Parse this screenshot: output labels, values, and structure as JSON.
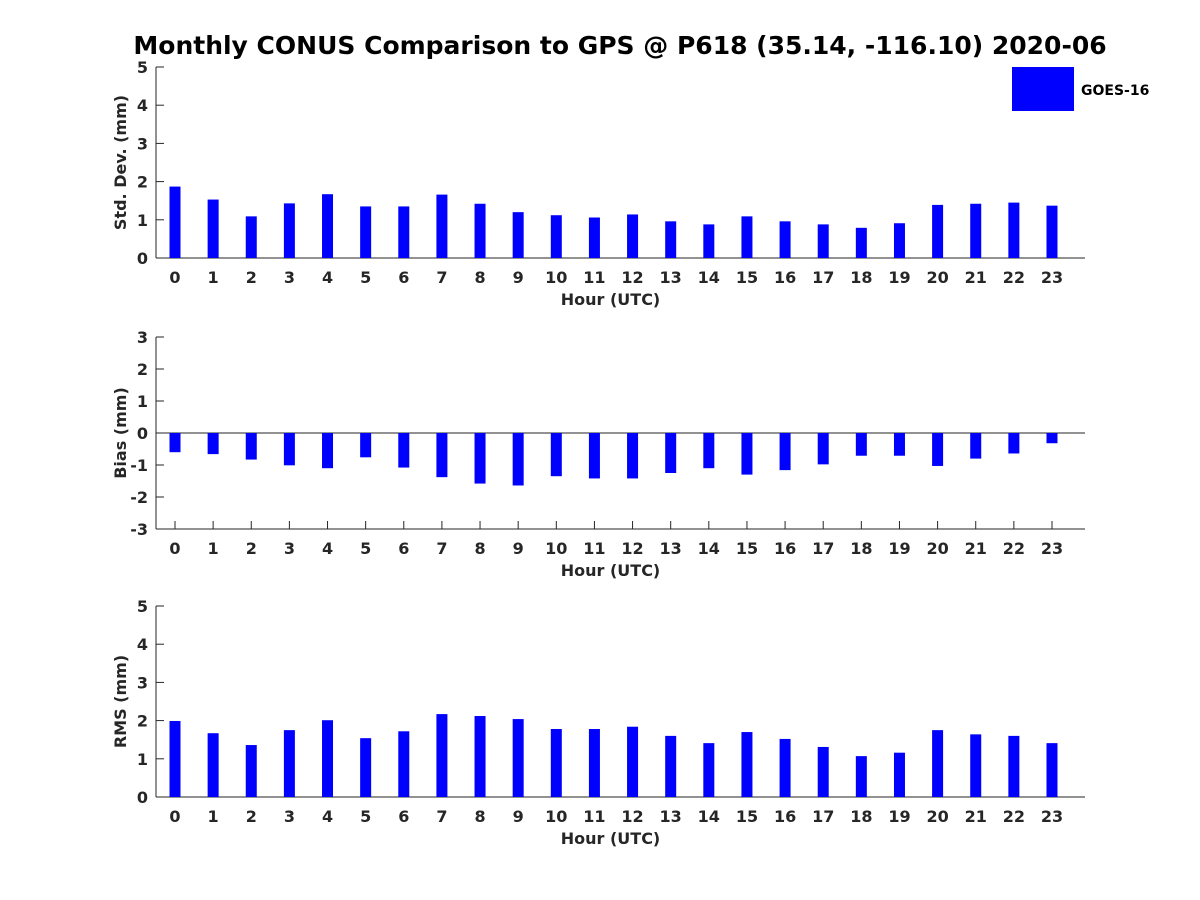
{
  "figure": {
    "title": "Monthly CONUS Comparison to GPS @ P618 (35.14, -116.10) 2020-06",
    "bar_color": "#0000ff",
    "legend_label": "GOES-16"
  },
  "chart_data": [
    {
      "type": "bar",
      "xlabel": "Hour (UTC)",
      "ylabel": "Std. Dev. (mm)",
      "ylim": [
        0,
        5
      ],
      "yticks": [
        0,
        1,
        2,
        3,
        4,
        5
      ],
      "categories": [
        "0",
        "1",
        "2",
        "3",
        "4",
        "5",
        "6",
        "7",
        "8",
        "9",
        "10",
        "11",
        "12",
        "13",
        "14",
        "15",
        "16",
        "17",
        "18",
        "19",
        "20",
        "21",
        "22",
        "23"
      ],
      "series": [
        {
          "name": "GOES-16",
          "values": [
            1.87,
            1.53,
            1.09,
            1.43,
            1.67,
            1.35,
            1.35,
            1.66,
            1.42,
            1.2,
            1.12,
            1.06,
            1.14,
            0.96,
            0.88,
            1.09,
            0.96,
            0.88,
            0.79,
            0.91,
            1.39,
            1.42,
            1.45,
            1.37
          ]
        }
      ],
      "legend": "top-right"
    },
    {
      "type": "bar",
      "xlabel": "Hour (UTC)",
      "ylabel": "Bias (mm)",
      "ylim": [
        -3,
        3
      ],
      "yticks": [
        -3,
        -2,
        -1,
        0,
        1,
        2,
        3
      ],
      "categories": [
        "0",
        "1",
        "2",
        "3",
        "4",
        "5",
        "6",
        "7",
        "8",
        "9",
        "10",
        "11",
        "12",
        "13",
        "14",
        "15",
        "16",
        "17",
        "18",
        "19",
        "20",
        "21",
        "22",
        "23"
      ],
      "series": [
        {
          "name": "GOES-16",
          "values": [
            -0.6,
            -0.66,
            -0.83,
            -1.01,
            -1.1,
            -0.76,
            -1.08,
            -1.38,
            -1.58,
            -1.64,
            -1.35,
            -1.42,
            -1.42,
            -1.25,
            -1.1,
            -1.3,
            -1.16,
            -0.98,
            -0.71,
            -0.71,
            -1.03,
            -0.8,
            -0.64,
            -0.32
          ]
        }
      ]
    },
    {
      "type": "bar",
      "xlabel": "Hour (UTC)",
      "ylabel": "RMS (mm)",
      "ylim": [
        0,
        5
      ],
      "yticks": [
        0,
        1,
        2,
        3,
        4,
        5
      ],
      "categories": [
        "0",
        "1",
        "2",
        "3",
        "4",
        "5",
        "6",
        "7",
        "8",
        "9",
        "10",
        "11",
        "12",
        "13",
        "14",
        "15",
        "16",
        "17",
        "18",
        "19",
        "20",
        "21",
        "22",
        "23"
      ],
      "series": [
        {
          "name": "GOES-16",
          "values": [
            1.99,
            1.67,
            1.36,
            1.75,
            2.01,
            1.54,
            1.72,
            2.17,
            2.12,
            2.04,
            1.78,
            1.78,
            1.84,
            1.6,
            1.41,
            1.7,
            1.52,
            1.31,
            1.07,
            1.16,
            1.75,
            1.64,
            1.6,
            1.41
          ]
        }
      ]
    }
  ]
}
